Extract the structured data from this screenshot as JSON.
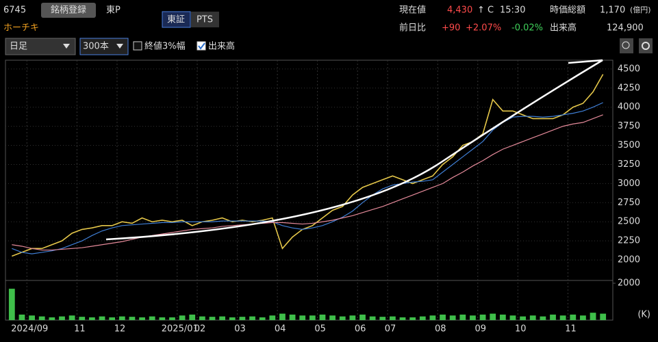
{
  "header": {
    "code": "6745",
    "register": "銘柄登録",
    "market": "東P",
    "name": "ホーチキ",
    "tse": "東証",
    "pts": "PTS",
    "price_label": "現在値",
    "price": "4,430",
    "price_mark": "↑ C",
    "time": "15:30",
    "cap_label": "時価総額",
    "cap": "1,170",
    "cap_unit": "(億円)",
    "change_label": "前日比",
    "change": "+90",
    "change_pct": "+2.07%",
    "change_other": "-0.02%",
    "volume_label": "出来高",
    "volume": "124,900"
  },
  "toolbar": {
    "period": "日足",
    "count": "300本",
    "option1": "終値3%幅",
    "option2": "出来高"
  },
  "chart_data": [
    {
      "type": "line",
      "ylim": [
        1750,
        4615
      ],
      "yticks": [
        2000,
        2250,
        2500,
        2750,
        3000,
        3250,
        3500,
        3750,
        4000,
        4250,
        4500
      ],
      "grid": true,
      "series": [
        {
          "color": "#e6c84a",
          "values": [
            2050,
            2100,
            2150,
            2150,
            2200,
            2250,
            2350,
            2400,
            2420,
            2450,
            2450,
            2500,
            2480,
            2550,
            2500,
            2520,
            2500,
            2520,
            2450,
            2500,
            2520,
            2550,
            2500,
            2520,
            2500,
            2520,
            2550,
            2150,
            2300,
            2400,
            2450,
            2550,
            2650,
            2700,
            2850,
            2950,
            3000,
            3050,
            3100,
            3050,
            3000,
            3050,
            3100,
            3250,
            3350,
            3500,
            3550,
            3650,
            4100,
            3950,
            3950,
            3900,
            3850,
            3850,
            3850,
            3900,
            4000,
            4050,
            4200,
            4430
          ]
        },
        {
          "color": "#3f7fd6",
          "values": [
            2150,
            2100,
            2080,
            2100,
            2120,
            2150,
            2200,
            2250,
            2320,
            2380,
            2420,
            2450,
            2460,
            2470,
            2480,
            2490,
            2490,
            2500,
            2500,
            2500,
            2500,
            2510,
            2510,
            2510,
            2510,
            2510,
            2500,
            2450,
            2420,
            2400,
            2420,
            2450,
            2500,
            2560,
            2640,
            2750,
            2850,
            2930,
            2980,
            3000,
            3020,
            3030,
            3050,
            3150,
            3250,
            3350,
            3450,
            3550,
            3700,
            3800,
            3870,
            3880,
            3880,
            3870,
            3880,
            3900,
            3920,
            3950,
            4000,
            4060
          ]
        },
        {
          "color": "#e58a9a",
          "values": [
            2200,
            2180,
            2150,
            2130,
            2130,
            2140,
            2150,
            2160,
            2180,
            2200,
            2220,
            2240,
            2270,
            2300,
            2320,
            2340,
            2360,
            2380,
            2400,
            2410,
            2420,
            2440,
            2450,
            2460,
            2470,
            2480,
            2490,
            2490,
            2480,
            2470,
            2480,
            2500,
            2520,
            2550,
            2580,
            2620,
            2660,
            2700,
            2750,
            2800,
            2850,
            2900,
            2950,
            3000,
            3080,
            3150,
            3230,
            3300,
            3380,
            3450,
            3500,
            3550,
            3600,
            3650,
            3700,
            3750,
            3780,
            3800,
            3850,
            3900
          ]
        }
      ]
    },
    {
      "type": "bar",
      "ylim": [
        0,
        2150
      ],
      "yticks": [
        2000
      ],
      "ylabel": "(K)",
      "color": "#3fbf4a",
      "categories": [
        null,
        null,
        "2024/09",
        null,
        null,
        null,
        null,
        "11",
        null,
        null,
        null,
        "12",
        null,
        null,
        null,
        null,
        null,
        "2025/01",
        null,
        "02",
        null,
        null,
        null,
        "03",
        null,
        null,
        null,
        "04",
        null,
        null,
        null,
        "05",
        null,
        null,
        null,
        "06",
        null,
        null,
        "07",
        null,
        null,
        null,
        null,
        "08",
        null,
        null,
        null,
        "09",
        null,
        null,
        null,
        "10",
        null,
        null,
        null,
        null,
        "11",
        null,
        null,
        null
      ],
      "values": [
        1700,
        300,
        250,
        200,
        150,
        200,
        250,
        180,
        150,
        200,
        150,
        200,
        180,
        150,
        200,
        150,
        150,
        250,
        300,
        200,
        180,
        200,
        150,
        180,
        200,
        150,
        250,
        350,
        300,
        250,
        250,
        300,
        250,
        200,
        250,
        300,
        200,
        180,
        200,
        150,
        150,
        200,
        250,
        300,
        250,
        300,
        250,
        300,
        350,
        300,
        250,
        200,
        250,
        200,
        300,
        250,
        300,
        250,
        400,
        350
      ]
    }
  ]
}
